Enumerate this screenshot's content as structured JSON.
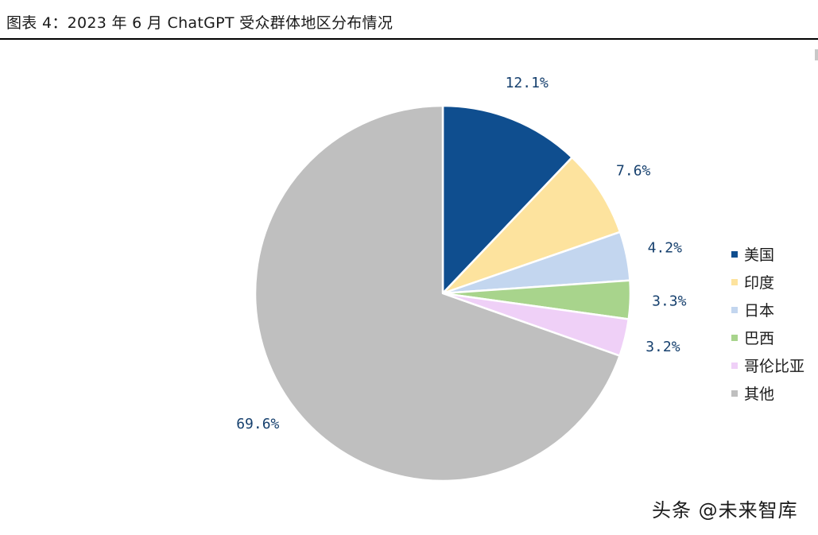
{
  "header": {
    "title": "图表 4：2023 年 6 月 ChatGPT 受众群体地区分布情况"
  },
  "watermark": "头条 @未来智库",
  "chart_data": {
    "type": "pie",
    "title": "图表 4：2023 年 6 月 ChatGPT 受众群体地区分布情况",
    "start_angle": "12 o'clock",
    "direction": "clockwise",
    "legend_position": "right",
    "slices": [
      {
        "label": "美国",
        "value": 12.1,
        "display": "12.1%",
        "color": "#0f4e8f"
      },
      {
        "label": "印度",
        "value": 7.6,
        "display": "7.6%",
        "color": "#fde39e"
      },
      {
        "label": "日本",
        "value": 4.2,
        "display": "4.2%",
        "color": "#c3d6ef"
      },
      {
        "label": "巴西",
        "value": 3.3,
        "display": "3.3%",
        "color": "#a8d48c"
      },
      {
        "label": "哥伦比亚",
        "value": 3.2,
        "display": "3.2%",
        "color": "#efd0f7"
      },
      {
        "label": "其他",
        "value": 69.6,
        "display": "69.6%",
        "color": "#bfbfbf"
      }
    ]
  }
}
